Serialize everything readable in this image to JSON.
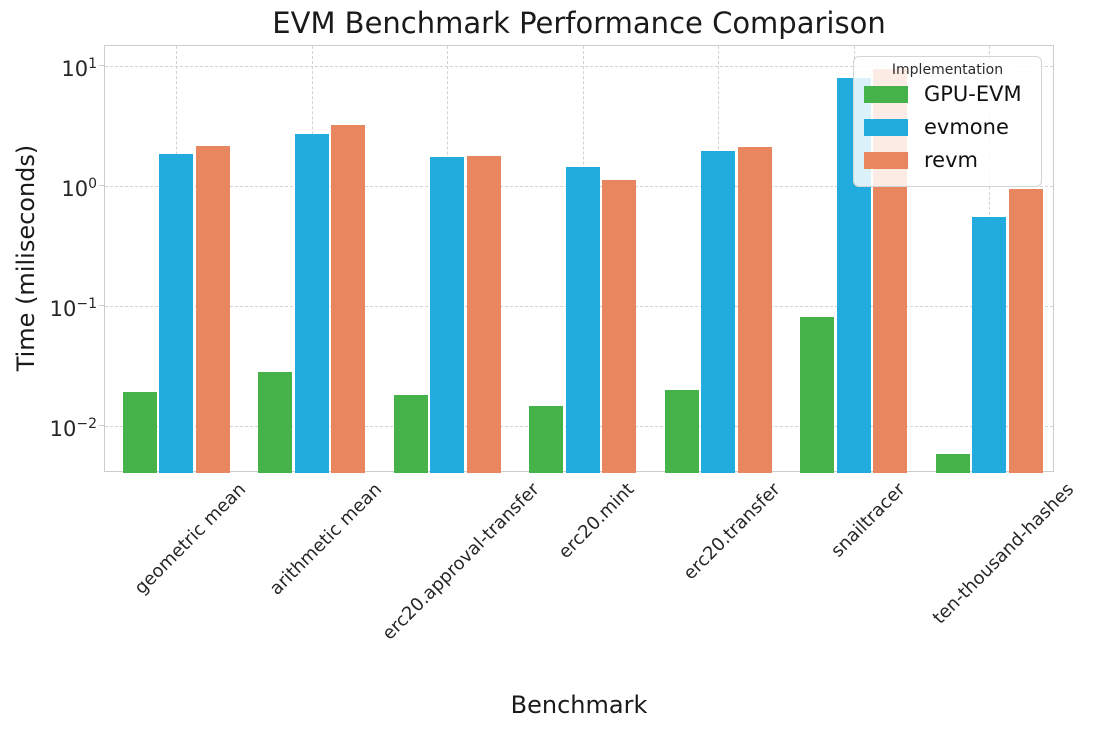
{
  "chart_data": {
    "type": "bar",
    "title": "EVM Benchmark Performance Comparison",
    "xlabel": "Benchmark",
    "ylabel": "Time (miliseconds)",
    "yscale": "log",
    "ylim": [
      0.0042,
      15
    ],
    "grid": true,
    "legend_position": "upper right",
    "legend_title": "Implementation",
    "categories": [
      "geometric mean",
      "arithmetic mean",
      "erc20.approval-transfer",
      "erc20.mint",
      "erc20.transfer",
      "snailtracer",
      "ten-thousand-hashes"
    ],
    "series": [
      {
        "name": "GPU-EVM",
        "color": "#45b349",
        "values": [
          0.019,
          0.028,
          0.018,
          0.0145,
          0.02,
          0.08,
          0.0058
        ]
      },
      {
        "name": "evmone",
        "color": "#22abdd",
        "values": [
          1.85,
          2.7,
          1.75,
          1.44,
          1.95,
          7.9,
          0.55
        ]
      },
      {
        "name": "revm",
        "color": "#e8875f",
        "values": [
          2.15,
          3.2,
          1.78,
          1.12,
          2.1,
          9.5,
          0.95
        ]
      }
    ],
    "yticks": [
      {
        "value": 10,
        "base": "10",
        "exp": "1"
      },
      {
        "value": 1,
        "base": "10",
        "exp": "0"
      },
      {
        "value": 0.1,
        "base": "10",
        "exp": "−1"
      },
      {
        "value": 0.01,
        "base": "10",
        "exp": "−2"
      }
    ]
  }
}
